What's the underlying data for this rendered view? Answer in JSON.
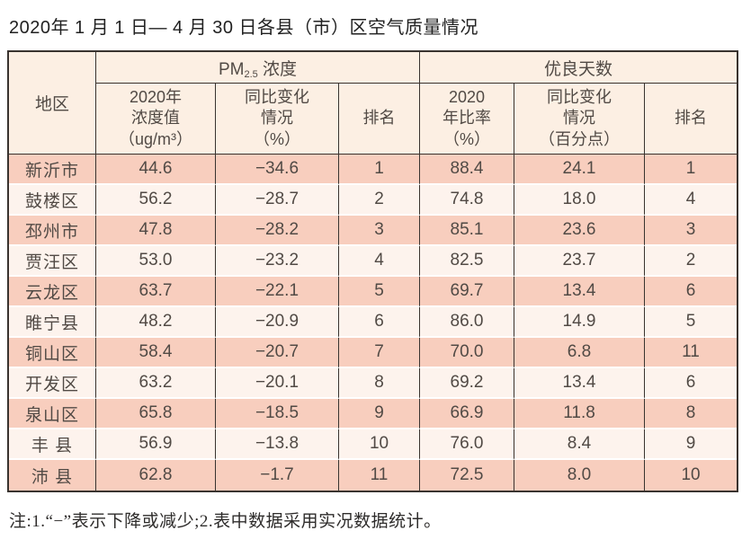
{
  "title": "2020年 1 月 1 日— 4 月 30 日各县（市）区空气质量情况",
  "table": {
    "header": {
      "region": "地区",
      "group_pm": {
        "prefix": "PM",
        "sub": "2.5",
        "suffix": " 浓度"
      },
      "group_good": "优良天数",
      "pm_value": "2020年\n浓度值\n（ug/m³）",
      "pm_change": "同比变化\n情况\n（%）",
      "pm_rank": "排名",
      "good_rate": "2020\n年比率\n（%）",
      "good_change": "同比变化\n情况\n（百分点）",
      "good_rank": "排名"
    },
    "rows": [
      {
        "region": "新沂市",
        "pm_value": "44.6",
        "pm_change": "−34.6",
        "pm_rank": "1",
        "good_rate": "88.4",
        "good_change": "24.1",
        "good_rank": "1"
      },
      {
        "region": "鼓楼区",
        "pm_value": "56.2",
        "pm_change": "−28.7",
        "pm_rank": "2",
        "good_rate": "74.8",
        "good_change": "18.0",
        "good_rank": "4"
      },
      {
        "region": "邳州市",
        "pm_value": "47.8",
        "pm_change": "−28.2",
        "pm_rank": "3",
        "good_rate": "85.1",
        "good_change": "23.6",
        "good_rank": "3"
      },
      {
        "region": "贾汪区",
        "pm_value": "53.0",
        "pm_change": "−23.2",
        "pm_rank": "4",
        "good_rate": "82.5",
        "good_change": "23.7",
        "good_rank": "2"
      },
      {
        "region": "云龙区",
        "pm_value": "63.7",
        "pm_change": "−22.1",
        "pm_rank": "5",
        "good_rate": "69.7",
        "good_change": "13.4",
        "good_rank": "6"
      },
      {
        "region": "睢宁县",
        "pm_value": "48.2",
        "pm_change": "−20.9",
        "pm_rank": "6",
        "good_rate": "86.0",
        "good_change": "14.9",
        "good_rank": "5"
      },
      {
        "region": "铜山区",
        "pm_value": "58.4",
        "pm_change": "−20.7",
        "pm_rank": "7",
        "good_rate": "70.0",
        "good_change": "6.8",
        "good_rank": "11"
      },
      {
        "region": "开发区",
        "pm_value": "63.2",
        "pm_change": "−20.1",
        "pm_rank": "8",
        "good_rate": "69.2",
        "good_change": "13.4",
        "good_rank": "6"
      },
      {
        "region": "泉山区",
        "pm_value": "65.8",
        "pm_change": "−18.5",
        "pm_rank": "9",
        "good_rate": "66.9",
        "good_change": "11.8",
        "good_rank": "8"
      },
      {
        "region": "丰 县",
        "pm_value": "56.9",
        "pm_change": "−13.8",
        "pm_rank": "10",
        "good_rate": "76.0",
        "good_change": "8.4",
        "good_rank": "9"
      },
      {
        "region": "沛 县",
        "pm_value": "62.8",
        "pm_change": "−1.7",
        "pm_rank": "11",
        "good_rate": "72.5",
        "good_change": "8.0",
        "good_rank": "10"
      }
    ]
  },
  "note": "注:1.“−”表示下降或减少;2.表中数据采用实况数据统计。",
  "colors": {
    "row_salmon": "#f8cebe",
    "row_light": "#fdf3ed",
    "header_bg": "#fcefe3",
    "border": "#39332f",
    "text": "#514a45"
  }
}
